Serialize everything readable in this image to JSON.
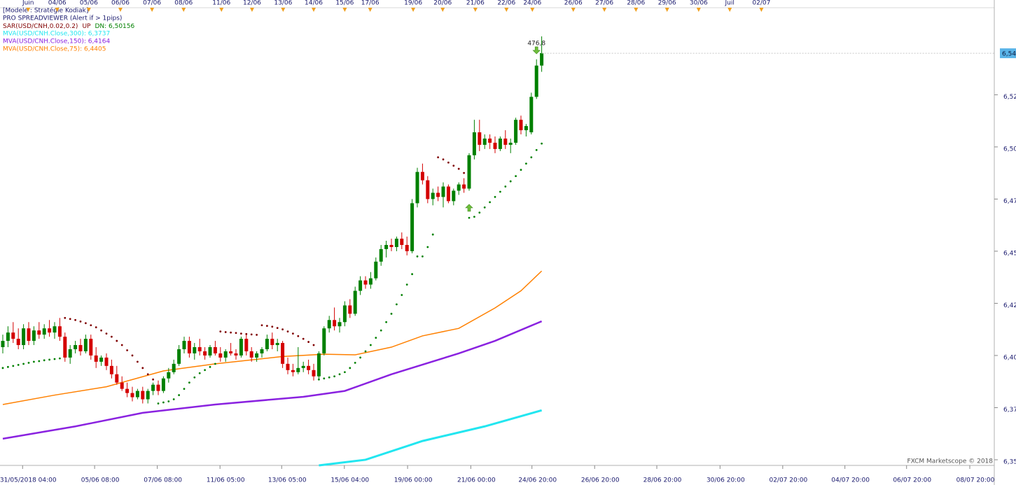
{
  "chart_data": {
    "type": "candlestick",
    "legend": [
      "[Modele : Stratégie Kodiak]",
      "PRO SPREADVIEWER (Alert if > 1pips)"
    ],
    "sar_legend": {
      "name": "SAR(USD/CNH,0.02,0.2)",
      "state": "UP",
      "value": "DN: 6,50156"
    },
    "watermark": "FXCM Marketscope © 2018",
    "candle_colors": {
      "up": "#008000",
      "down": "#d40000"
    },
    "sar_colors": {
      "below": "#008000",
      "above": "#800000"
    },
    "candles": [
      [
        6.404,
        6.41,
        6.401,
        6.407
      ],
      [
        6.407,
        6.414,
        6.404,
        6.411
      ],
      [
        6.411,
        6.416,
        6.406,
        6.408
      ],
      [
        6.408,
        6.413,
        6.403,
        6.405
      ],
      [
        6.405,
        6.415,
        6.403,
        6.413
      ],
      [
        6.413,
        6.416,
        6.405,
        6.407
      ],
      [
        6.407,
        6.414,
        6.405,
        6.412
      ],
      [
        6.412,
        6.416,
        6.408,
        6.41
      ],
      [
        6.41,
        6.415,
        6.408,
        6.413
      ],
      [
        6.413,
        6.417,
        6.409,
        6.411
      ],
      [
        6.411,
        6.416,
        6.408,
        6.414
      ],
      [
        6.414,
        6.418,
        6.407,
        6.409
      ],
      [
        6.409,
        6.411,
        6.397,
        6.399
      ],
      [
        6.399,
        6.405,
        6.396,
        6.403
      ],
      [
        6.403,
        6.407,
        6.401,
        6.405
      ],
      [
        6.405,
        6.408,
        6.4,
        6.402
      ],
      [
        6.402,
        6.41,
        6.401,
        6.408
      ],
      [
        6.408,
        6.41,
        6.398,
        6.4
      ],
      [
        6.4,
        6.404,
        6.394,
        6.397
      ],
      [
        6.397,
        6.4,
        6.395,
        6.399
      ],
      [
        6.399,
        6.401,
        6.393,
        6.395
      ],
      [
        6.395,
        6.398,
        6.389,
        6.391
      ],
      [
        6.391,
        6.395,
        6.386,
        6.387
      ],
      [
        6.387,
        6.39,
        6.383,
        6.384
      ],
      [
        6.384,
        6.387,
        6.38,
        6.382
      ],
      [
        6.382,
        6.385,
        6.378,
        6.38
      ],
      [
        6.38,
        6.384,
        6.379,
        6.383
      ],
      [
        6.383,
        6.385,
        6.377,
        6.379
      ],
      [
        6.379,
        6.384,
        6.377,
        6.383
      ],
      [
        6.383,
        6.387,
        6.381,
        6.386
      ],
      [
        6.386,
        6.388,
        6.381,
        6.383
      ],
      [
        6.383,
        6.39,
        6.382,
        6.389
      ],
      [
        6.389,
        6.394,
        6.387,
        6.392
      ],
      [
        6.392,
        6.398,
        6.391,
        6.396
      ],
      [
        6.396,
        6.405,
        6.395,
        6.403
      ],
      [
        6.403,
        6.409,
        6.401,
        6.407
      ],
      [
        6.407,
        6.409,
        6.399,
        6.401
      ],
      [
        6.401,
        6.406,
        6.398,
        6.404
      ],
      [
        6.404,
        6.408,
        6.4,
        6.402
      ],
      [
        6.402,
        6.404,
        6.398,
        6.4
      ],
      [
        6.4,
        6.405,
        6.399,
        6.404
      ],
      [
        6.404,
        6.407,
        6.4,
        6.401
      ],
      [
        6.401,
        6.404,
        6.397,
        6.399
      ],
      [
        6.399,
        6.403,
        6.397,
        6.402
      ],
      [
        6.402,
        6.406,
        6.4,
        6.401
      ],
      [
        6.401,
        6.403,
        6.398,
        6.4
      ],
      [
        6.4,
        6.409,
        6.399,
        6.408
      ],
      [
        6.408,
        6.41,
        6.4,
        6.402
      ],
      [
        6.402,
        6.404,
        6.397,
        6.399
      ],
      [
        6.399,
        6.402,
        6.397,
        6.401
      ],
      [
        6.401,
        6.404,
        6.399,
        6.403
      ],
      [
        6.403,
        6.41,
        6.402,
        6.408
      ],
      [
        6.408,
        6.411,
        6.403,
        6.405
      ],
      [
        6.405,
        6.408,
        6.402,
        6.406
      ],
      [
        6.406,
        6.407,
        6.394,
        6.396
      ],
      [
        6.396,
        6.399,
        6.391,
        6.393
      ],
      [
        6.393,
        6.396,
        6.39,
        6.392
      ],
      [
        6.392,
        6.404,
        6.391,
        6.394
      ],
      [
        6.394,
        6.397,
        6.392,
        6.395
      ],
      [
        6.395,
        6.398,
        6.391,
        6.393
      ],
      [
        6.393,
        6.396,
        6.388,
        6.39
      ],
      [
        6.39,
        6.402,
        6.389,
        6.401
      ],
      [
        6.401,
        6.414,
        6.4,
        6.413
      ],
      [
        6.413,
        6.419,
        6.411,
        6.417
      ],
      [
        6.417,
        6.423,
        6.412,
        6.414
      ],
      [
        6.414,
        6.418,
        6.411,
        6.416
      ],
      [
        6.416,
        6.426,
        6.414,
        6.424
      ],
      [
        6.424,
        6.427,
        6.418,
        6.42
      ],
      [
        6.42,
        6.433,
        6.419,
        6.431
      ],
      [
        6.431,
        6.438,
        6.429,
        6.436
      ],
      [
        6.436,
        6.438,
        6.432,
        6.434
      ],
      [
        6.434,
        6.44,
        6.432,
        6.437
      ],
      [
        6.437,
        6.447,
        6.436,
        6.445
      ],
      [
        6.445,
        6.453,
        6.443,
        6.451
      ],
      [
        6.451,
        6.455,
        6.447,
        6.453
      ],
      [
        6.453,
        6.456,
        6.45,
        6.452
      ],
      [
        6.452,
        6.457,
        6.45,
        6.456
      ],
      [
        6.456,
        6.459,
        6.451,
        6.453
      ],
      [
        6.453,
        6.457,
        6.448,
        6.45
      ],
      [
        6.45,
        6.475,
        6.449,
        6.473
      ],
      [
        6.473,
        6.49,
        6.471,
        6.488
      ],
      [
        6.488,
        6.492,
        6.482,
        6.484
      ],
      [
        6.484,
        6.486,
        6.473,
        6.475
      ],
      [
        6.475,
        6.48,
        6.472,
        6.478
      ],
      [
        6.478,
        6.481,
        6.474,
        6.476
      ],
      [
        6.476,
        6.483,
        6.471,
        6.481
      ],
      [
        6.481,
        6.482,
        6.473,
        6.474
      ],
      [
        6.474,
        6.48,
        6.472,
        6.479
      ],
      [
        6.479,
        6.483,
        6.477,
        6.482
      ],
      [
        6.482,
        6.485,
        6.478,
        6.48
      ],
      [
        6.48,
        6.497,
        6.479,
        6.496
      ],
      [
        6.496,
        6.513,
        6.494,
        6.507
      ],
      [
        6.507,
        6.513,
        6.498,
        6.501
      ],
      [
        6.501,
        6.506,
        6.499,
        6.504
      ],
      [
        6.504,
        6.506,
        6.499,
        6.502
      ],
      [
        6.502,
        6.505,
        6.497,
        6.499
      ],
      [
        6.499,
        6.505,
        6.498,
        6.504
      ],
      [
        6.504,
        6.508,
        6.499,
        6.501
      ],
      [
        6.501,
        6.504,
        6.497,
        6.502
      ],
      [
        6.502,
        6.514,
        6.501,
        6.513
      ],
      [
        6.513,
        6.515,
        6.506,
        6.508
      ],
      [
        6.508,
        6.511,
        6.505,
        6.51
      ],
      [
        6.507,
        6.526,
        6.506,
        6.524
      ],
      [
        6.524,
        6.542,
        6.523,
        6.539
      ],
      [
        6.539,
        6.553,
        6.536,
        6.545
      ]
    ],
    "sar": [
      6.394,
      6.3945,
      6.395,
      6.3955,
      6.396,
      6.3965,
      6.397,
      6.3973,
      6.3977,
      6.398,
      6.3983,
      6.3986,
      6.418,
      6.4175,
      6.417,
      6.4163,
      6.4155,
      6.4145,
      6.4135,
      6.412,
      6.4105,
      6.409,
      6.407,
      6.405,
      6.4025,
      6.4,
      6.397,
      6.394,
      6.391,
      6.3885,
      6.377,
      6.3775,
      6.378,
      6.379,
      6.381,
      6.384,
      6.387,
      6.3895,
      6.3915,
      6.393,
      6.3945,
      6.396,
      6.4115,
      6.4112,
      6.411,
      6.4108,
      6.4105,
      6.4103,
      6.4101,
      6.4099,
      6.4145,
      6.4142,
      6.4138,
      6.4132,
      6.4125,
      6.4115,
      6.4105,
      6.4093,
      6.408,
      6.4065,
      6.405,
      6.3885,
      6.389,
      6.3895,
      6.39,
      6.391,
      6.392,
      6.394,
      6.3965,
      6.399,
      6.402,
      6.405,
      6.4085,
      6.412,
      6.416,
      6.42,
      6.4245,
      6.429,
      6.434,
      6.439,
      6.4475,
      6.4475,
      6.452,
      6.458,
      6.495,
      6.494,
      6.4925,
      6.491,
      6.4895,
      6.4875,
      6.466,
      6.4665,
      6.4685,
      6.471,
      6.4735,
      6.476,
      6.4785,
      6.481,
      6.4835,
      6.486,
      6.489,
      6.492,
      6.495,
      6.4985,
      6.5016
    ],
    "ma": [
      {
        "name": "MVA(USD/CNH.Close,300): 6,3737",
        "color": "#22e6f0",
        "width": 3,
        "x": [
          61,
          70,
          81,
          93,
          104
        ],
        "values": [
          6.3473,
          6.35,
          6.359,
          6.366,
          6.3737
        ]
      },
      {
        "name": "MVA(USD/CNH.Close,150): 6,4164",
        "color": "#8a22e0",
        "width": 2.5,
        "x": [
          0,
          14,
          27,
          41,
          58,
          66,
          75,
          88,
          95,
          104
        ],
        "values": [
          6.3601,
          6.366,
          6.3725,
          6.3765,
          6.3802,
          6.383,
          6.391,
          6.401,
          6.407,
          6.4164
        ]
      },
      {
        "name": "MVA(USD/CNH.Close,75): 6,4405",
        "color": "#ff8000",
        "width": 1.5,
        "x": [
          0,
          10,
          20,
          31,
          41,
          54,
          62,
          68,
          75,
          81,
          88,
          95,
          100,
          104
        ],
        "values": [
          6.3765,
          6.381,
          6.385,
          6.3926,
          6.396,
          6.3995,
          6.4006,
          6.4003,
          6.404,
          6.4094,
          6.413,
          6.4228,
          6.431,
          6.4405
        ]
      }
    ],
    "annotations": [
      {
        "direction": "up",
        "x": 90,
        "y": 6.4708,
        "color": "#6fbf3a"
      },
      {
        "direction": "down",
        "x": 103,
        "y": 6.5463,
        "color": "#6fbf3a",
        "label": "476,8"
      }
    ],
    "price_marker": {
      "value": 6.5449,
      "label": "6,54",
      "color": "#5ab4e8"
    },
    "xlim": [
      -0.54,
      191.35
    ],
    "ylim": [
      6.3473,
      6.5654
    ],
    "yticks": [
      {
        "value": 6.35,
        "label": "6,35"
      },
      {
        "value": 6.375,
        "label": "6,37"
      },
      {
        "value": 6.4,
        "label": "6,40"
      },
      {
        "value": 6.425,
        "label": "6,42"
      },
      {
        "value": 6.45,
        "label": "6,45"
      },
      {
        "value": 6.475,
        "label": "6,47"
      },
      {
        "value": 6.5,
        "label": "6,50"
      },
      {
        "value": 6.525,
        "label": "6,52"
      }
    ],
    "xticks": [
      {
        "value": 4.9,
        "label": "31/05/2018 04:00"
      },
      {
        "value": 18.8,
        "label": "05/06 08:00"
      },
      {
        "value": 30.9,
        "label": "07/06 08:00"
      },
      {
        "value": 43,
        "label": "11/06 05:00"
      },
      {
        "value": 54.9,
        "label": "13/06 05:00"
      },
      {
        "value": 67,
        "label": "15/06 04:00"
      },
      {
        "value": 79.2,
        "label": "19/06 00:00"
      },
      {
        "value": 91.4,
        "label": "21/06 00:00"
      },
      {
        "value": 103.2,
        "label": "24/06 20:00"
      },
      {
        "value": 115.3,
        "label": "26/06 20:00"
      },
      {
        "value": 127.3,
        "label": "28/06 20:00"
      },
      {
        "value": 139.5,
        "label": "30/06 20:00"
      },
      {
        "value": 151.6,
        "label": "02/07 20:00"
      },
      {
        "value": 163.6,
        "label": "04/07 20:00"
      },
      {
        "value": 175.5,
        "label": "06/07 20:00"
      },
      {
        "value": 187.7,
        "label": "08/07 20:00"
      }
    ],
    "xticks_top": [
      {
        "value": 4.9,
        "label": "Juin"
      },
      {
        "value": 10.5,
        "label": "04/06"
      },
      {
        "value": 16.6,
        "label": "05/06"
      },
      {
        "value": 22.7,
        "label": "06/06"
      },
      {
        "value": 28.8,
        "label": "07/06"
      },
      {
        "value": 34.9,
        "label": "08/06"
      },
      {
        "value": 42.2,
        "label": "11/06"
      },
      {
        "value": 48.1,
        "label": "12/06"
      },
      {
        "value": 54.1,
        "label": "13/06"
      },
      {
        "value": 60,
        "label": "14/06"
      },
      {
        "value": 66,
        "label": "15/06"
      },
      {
        "value": 70.9,
        "label": "17/06"
      },
      {
        "value": 79.2,
        "label": "19/06"
      },
      {
        "value": 84.9,
        "label": "20/06"
      },
      {
        "value": 91.2,
        "label": "21/06"
      },
      {
        "value": 97.2,
        "label": "22/06"
      },
      {
        "value": 102.2,
        "label": "24/06"
      },
      {
        "value": 110.1,
        "label": "26/06"
      },
      {
        "value": 116.1,
        "label": "27/06"
      },
      {
        "value": 122.2,
        "label": "28/06"
      },
      {
        "value": 128.2,
        "label": "29/06"
      },
      {
        "value": 134.3,
        "label": "30/06"
      },
      {
        "value": 140.3,
        "label": "Juil"
      },
      {
        "value": 146.4,
        "label": "02/07"
      }
    ],
    "grid": false
  }
}
